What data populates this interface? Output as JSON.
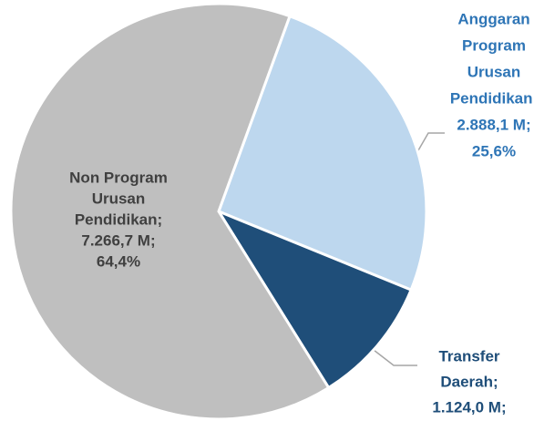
{
  "chart_data": {
    "type": "pie",
    "category_lines": [
      [
        "Anggaran",
        "Program",
        "Urusan",
        "Pendidikan;"
      ],
      [
        "Transfer",
        "Daerah;"
      ],
      [
        "Non Program",
        "Urusan",
        "Pendidikan;"
      ]
    ],
    "values": [
      2888.1,
      1124.0,
      7266.7
    ],
    "value_labels": [
      "2.888,1 M;",
      "1.124,0 M;",
      "7.266,7 M;"
    ],
    "percent_labels": [
      "25,6%",
      null,
      "64,4%"
    ],
    "colors": [
      "#bdd7ee",
      "#1f4e79",
      "#bfbfbf"
    ],
    "label_colors": [
      "#2e75b6",
      "#1f4e79",
      "#404040"
    ],
    "start_angle": 20
  }
}
